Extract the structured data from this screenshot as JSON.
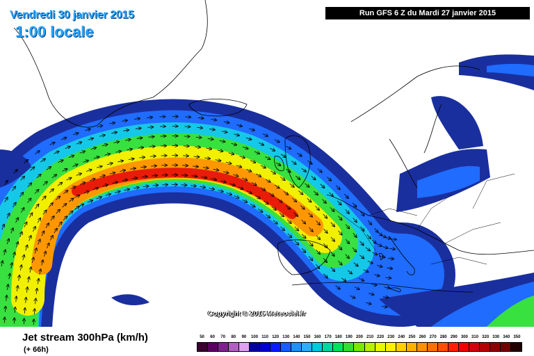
{
  "header": {
    "date": "Vendredi 30 janvier 2015",
    "time": "1:00 locale",
    "run": "Run GFS 6 Z du Mardi 27 janvier 2015"
  },
  "copyright": "Copyright © 2015 Meteociel.fr",
  "footer": {
    "title": "Jet stream 300hPa (km/h)",
    "lead": "(+ 66h)"
  },
  "scale": {
    "values": [
      50,
      60,
      70,
      80,
      90,
      100,
      110,
      120,
      130,
      140,
      150,
      160,
      170,
      180,
      190,
      200,
      210,
      220,
      230,
      240,
      250,
      260,
      270,
      280,
      290,
      300,
      310,
      320,
      330,
      340,
      350
    ],
    "colors": [
      "#3a0030",
      "#5a0060",
      "#80208f",
      "#b060c0",
      "#e0a0f0",
      "#0000a0",
      "#0000d0",
      "#0a1cff",
      "#1660ff",
      "#2090ff",
      "#28b0ff",
      "#00c8e0",
      "#00d8a0",
      "#00e060",
      "#30e030",
      "#7ae800",
      "#b8f000",
      "#e8f800",
      "#fff000",
      "#ffd000",
      "#ffb000",
      "#ff9000",
      "#ff7000",
      "#ff5000",
      "#ff2000",
      "#f00000",
      "#d00010",
      "#b00000",
      "#900000",
      "#700000",
      "#200000"
    ]
  },
  "map_colors": {
    "ocean": "#ffffff",
    "coast": "#000000",
    "jet_outer": "#1f3ea8",
    "jet_core": "#e01808"
  },
  "icons": [
    "wind-arrow-icon"
  ]
}
